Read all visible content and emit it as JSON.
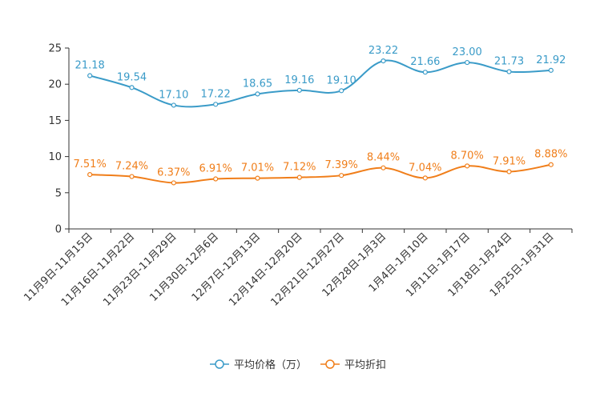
{
  "chart_data": {
    "type": "line",
    "title": "",
    "xlabel": "",
    "ylabel": "",
    "ylim": [
      0,
      25
    ],
    "yticks": [
      0,
      5,
      10,
      15,
      20,
      25
    ],
    "grid": false,
    "legend_position": "bottom-center",
    "categories": [
      "11月9日-11月15日",
      "11月16日-11月22日",
      "11月23日-11月29日",
      "11月30日-12月6日",
      "12月7日-12月13日",
      "12月14日-12月20日",
      "12月21日-12月27日",
      "12月28日-1月3日",
      "1月4日-1月10日",
      "1月11日-1月17日",
      "1月18日-1月24日",
      "1月25日-1月31日"
    ],
    "series": [
      {
        "name": "平均价格（万）",
        "color": "#3a9bc8",
        "values": [
          21.18,
          19.54,
          17.1,
          17.22,
          18.65,
          19.16,
          19.1,
          23.22,
          21.66,
          23.0,
          21.73,
          21.92
        ],
        "labels": [
          "21.18",
          "19.54",
          "17.10",
          "17.22",
          "18.65",
          "19.16",
          "19.10",
          "23.22",
          "21.66",
          "23.00",
          "21.73",
          "21.92"
        ]
      },
      {
        "name": "平均折扣",
        "color": "#f07e1a",
        "values": [
          7.51,
          7.24,
          6.37,
          6.91,
          7.01,
          7.12,
          7.39,
          8.44,
          7.04,
          8.7,
          7.91,
          8.88
        ],
        "labels": [
          "7.51%",
          "7.24%",
          "6.37%",
          "6.91%",
          "7.01%",
          "7.12%",
          "7.39%",
          "8.44%",
          "7.04%",
          "8.70%",
          "7.91%",
          "8.88%"
        ]
      }
    ]
  }
}
